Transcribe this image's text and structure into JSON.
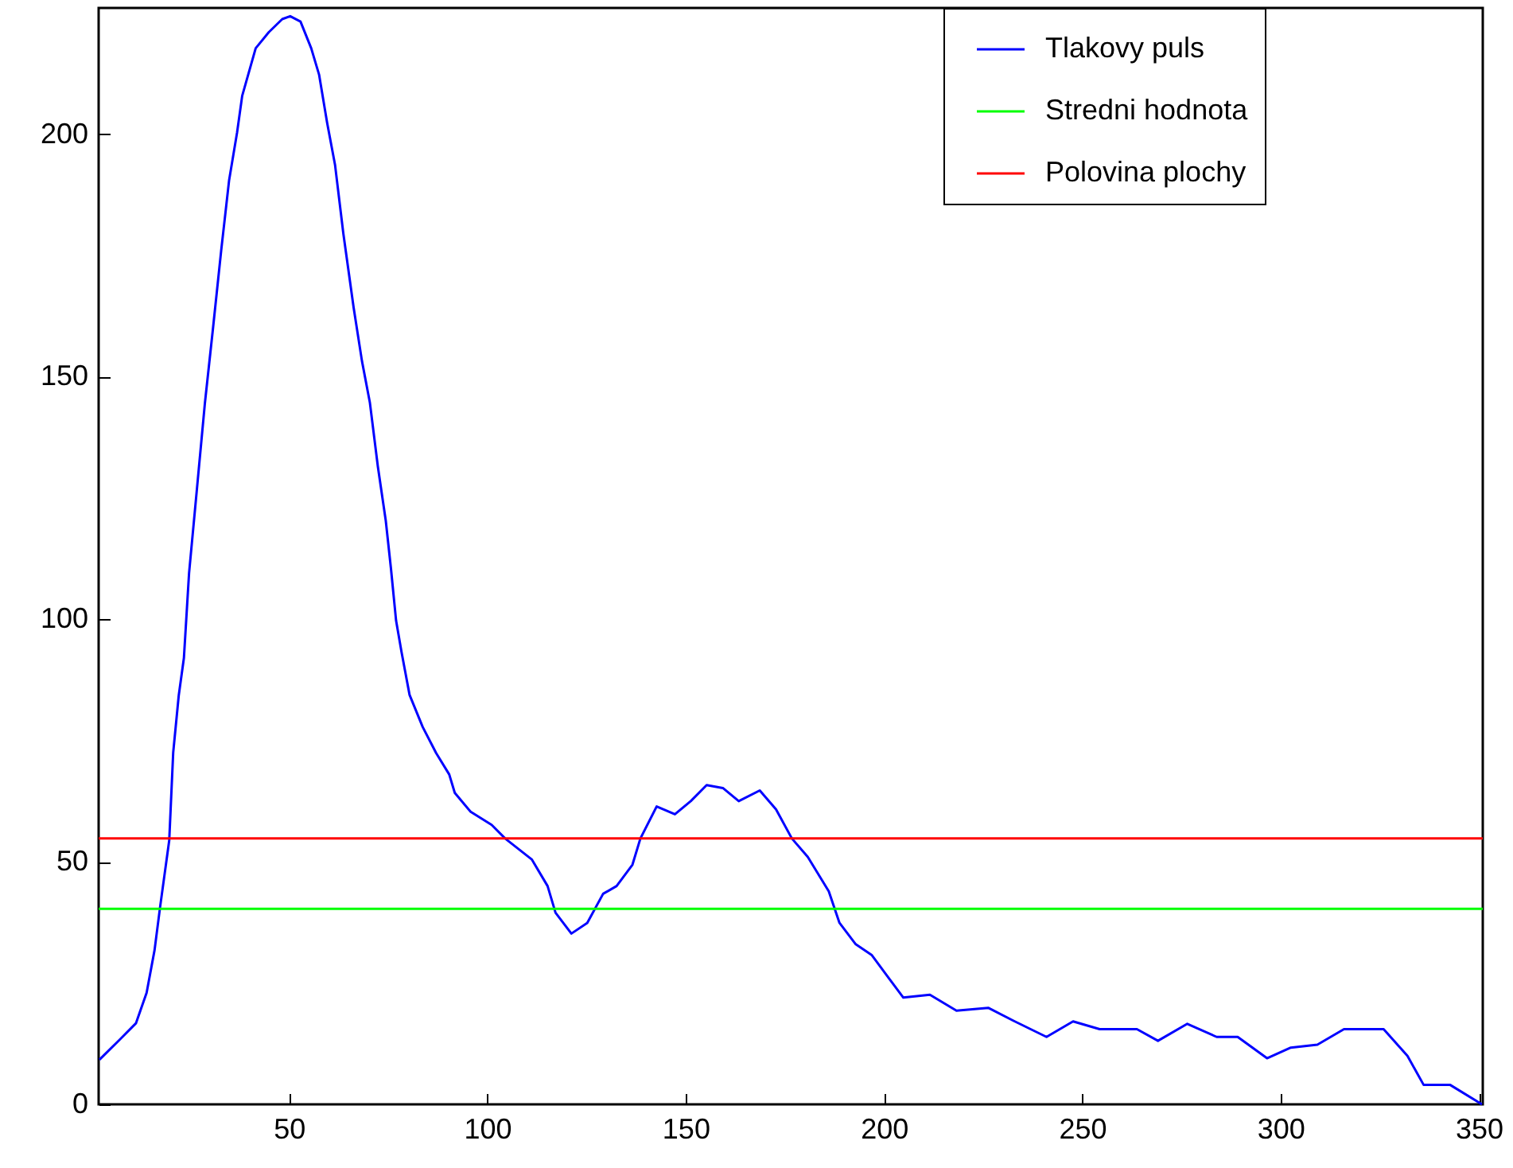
{
  "chart_data": {
    "type": "line",
    "x": [
      2.2,
      7.4,
      11.4,
      14.1,
      16.1,
      17.5,
      19.8,
      20.8,
      22.2,
      23.5,
      24.8,
      26.8,
      28.8,
      30.8,
      32.9,
      34.9,
      36.9,
      38.2,
      41.6,
      44.9,
      48.3,
      50.3,
      52.9,
      55.6,
      57.6,
      59.6,
      61.6,
      63.7,
      66.3,
      68.4,
      70.4,
      72.4,
      74.4,
      75.7,
      77,
      78.4,
      80.4,
      83.7,
      87.1,
      90.4,
      91.8,
      95.8,
      101.1,
      104.5,
      111.2,
      115.2,
      117.2,
      121.2,
      125.2,
      129.2,
      132.6,
      136.6,
      138.6,
      142.7,
      147.3,
      151.3,
      155.3,
      159.4,
      163.4,
      168.7,
      172.8,
      176.8,
      180.8,
      186.1,
      188.8,
      192.9,
      196.9,
      200.9,
      204.9,
      211.6,
      218.3,
      226.3,
      233,
      241,
      247.7,
      254.4,
      263.8,
      269.1,
      276.5,
      283.9,
      289.2,
      296.6,
      302.6,
      309.3,
      316,
      326,
      332,
      336.1,
      342.8,
      350.8
    ],
    "series": [
      {
        "name": "Tlakovy puls",
        "color": "#0000ff",
        "values": [
          9.2,
          13.4,
          16.7,
          23,
          31.8,
          40.7,
          54.4,
          72.5,
          84.3,
          92,
          109.5,
          127,
          144.6,
          159.7,
          176,
          190.5,
          200.3,
          207.9,
          217.7,
          221,
          223.7,
          224.3,
          223.2,
          217.7,
          212.2,
          202.4,
          193.7,
          179.5,
          164.2,
          153.2,
          144.6,
          131.5,
          120.3,
          110.5,
          99.7,
          93.1,
          84.4,
          77.8,
          72.4,
          68,
          64.2,
          60.3,
          57.6,
          54.8,
          50.5,
          45,
          39.5,
          35.2,
          37.4,
          43.4,
          45,
          49.4,
          54.8,
          61.4,
          59.8,
          62.5,
          65.8,
          65.2,
          62.5,
          64.7,
          60.8,
          54.8,
          51,
          43.9,
          37.4,
          33,
          30.8,
          26.4,
          22,
          22.6,
          19.3,
          19.9,
          17.1,
          13.9,
          17.1,
          15.5,
          15.5,
          13.1,
          16.6,
          13.9,
          13.9,
          9.5,
          11.7,
          12.3,
          15.5,
          15.5,
          10,
          4,
          4,
          0
        ]
      }
    ],
    "ref_lines": [
      {
        "axis": "y",
        "value": 40.3,
        "label": "Stredni hodnota",
        "color": "#00ff00"
      },
      {
        "axis": "y",
        "value": 54.8,
        "label": "Polovina plochy",
        "color": "#ff0000"
      }
    ],
    "xlim": [
      2,
      351
    ],
    "ylim": [
      0,
      226
    ],
    "xticks": [
      50,
      100,
      150,
      200,
      250,
      300,
      350
    ],
    "yticks": [
      0,
      50,
      100,
      150,
      200
    ],
    "grid": false,
    "legend": "top right",
    "marker": "none",
    "line_style": "solid"
  }
}
